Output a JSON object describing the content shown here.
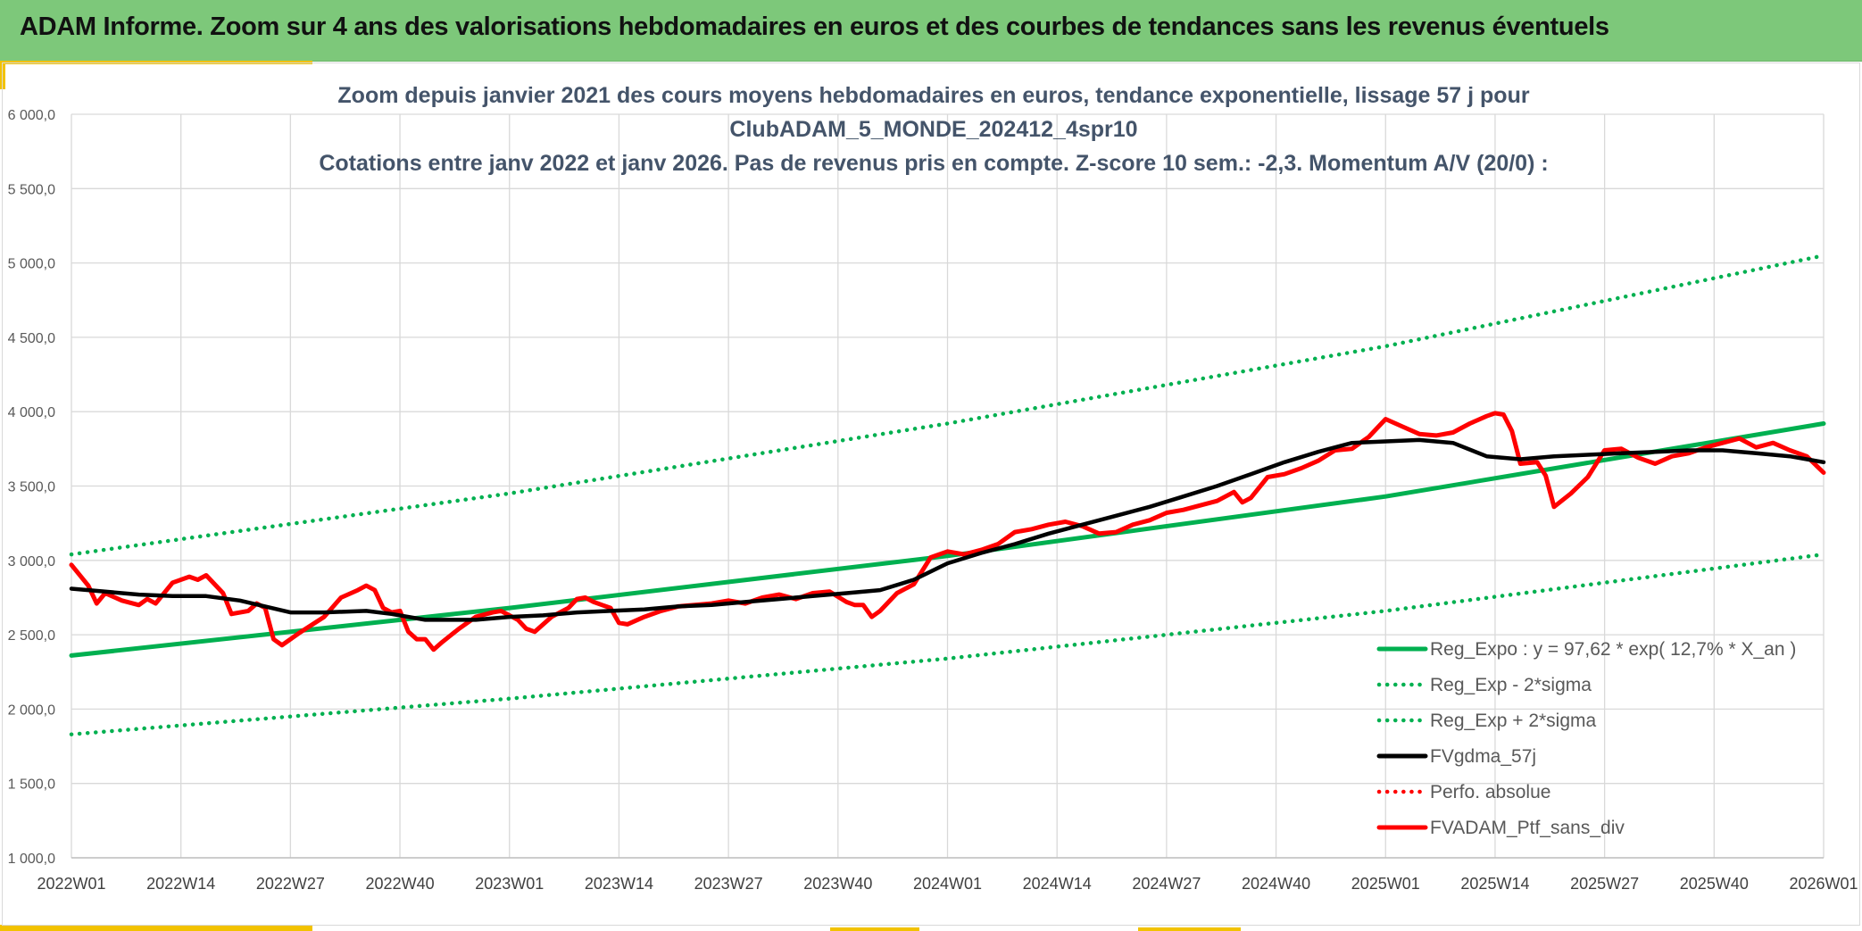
{
  "banner": {
    "title": "ADAM Informe. Zoom sur 4 ans des valorisations hebdomadaires en euros et des courbes de tendances sans les revenus éventuels"
  },
  "colors": {
    "banner_bg": "#7dc87a",
    "accent": "#f2c200",
    "reg_expo": "#00b050",
    "fvgdma": "#000000",
    "perf": "#ff0000",
    "ptf": "#ff0000"
  },
  "chart_data": {
    "type": "line",
    "title": [
      "Zoom depuis janvier 2021 des cours moyens hebdomadaires en euros, tendance exponentielle, lissage 57 j pour",
      "ClubADAM_5_MONDE_202412_4spr10",
      "Cotations entre janv 2022 et janv 2026. Pas de revenus pris en compte. Z-score 10 sem.: -2,3. Momentum A/V (20/0) :"
    ],
    "xlabel": "",
    "ylabel": "",
    "ylim": [
      1000,
      6000
    ],
    "xlim": [
      0,
      208
    ],
    "grid": true,
    "y_ticks": [
      {
        "value": 1000,
        "label": "1 000,0"
      },
      {
        "value": 1500,
        "label": "1 500,0"
      },
      {
        "value": 2000,
        "label": "2 000,0"
      },
      {
        "value": 2500,
        "label": "2 500,0"
      },
      {
        "value": 3000,
        "label": "3 000,0"
      },
      {
        "value": 3500,
        "label": "3 500,0"
      },
      {
        "value": 4000,
        "label": "4 000,0"
      },
      {
        "value": 4500,
        "label": "4 500,0"
      },
      {
        "value": 5000,
        "label": "5 000,0"
      },
      {
        "value": 5500,
        "label": "5 500,0"
      },
      {
        "value": 6000,
        "label": "6 000,0"
      }
    ],
    "x_ticks": [
      {
        "week": 0,
        "label": "2022W01"
      },
      {
        "week": 13,
        "label": "2022W14"
      },
      {
        "week": 26,
        "label": "2022W27"
      },
      {
        "week": 39,
        "label": "2022W40"
      },
      {
        "week": 52,
        "label": "2023W01"
      },
      {
        "week": 65,
        "label": "2023W14"
      },
      {
        "week": 78,
        "label": "2023W27"
      },
      {
        "week": 91,
        "label": "2023W40"
      },
      {
        "week": 104,
        "label": "2024W01"
      },
      {
        "week": 117,
        "label": "2024W14"
      },
      {
        "week": 130,
        "label": "2024W27"
      },
      {
        "week": 143,
        "label": "2024W40"
      },
      {
        "week": 156,
        "label": "2025W01"
      },
      {
        "week": 169,
        "label": "2025W14"
      },
      {
        "week": 182,
        "label": "2025W27"
      },
      {
        "week": 195,
        "label": "2025W40"
      },
      {
        "week": 208,
        "label": "2026W01"
      }
    ],
    "legend_position": "bottom-right",
    "series": [
      {
        "name": "Reg_Expo : y = 97,62 * exp( 12,7% *  X_an )",
        "style": "solid",
        "color": "#00b050",
        "points": [
          [
            0,
            2360
          ],
          [
            52,
            2680
          ],
          [
            104,
            3030
          ],
          [
            156,
            3430
          ],
          [
            208,
            3920
          ]
        ]
      },
      {
        "name": "Reg_Exp - 2*sigma",
        "style": "dotted",
        "color": "#00b050",
        "points": [
          [
            0,
            1830
          ],
          [
            52,
            2070
          ],
          [
            104,
            2340
          ],
          [
            156,
            2660
          ],
          [
            208,
            3040
          ]
        ]
      },
      {
        "name": "Reg_Exp + 2*sigma",
        "style": "dotted",
        "color": "#00b050",
        "points": [
          [
            0,
            3040
          ],
          [
            52,
            3450
          ],
          [
            104,
            3920
          ],
          [
            156,
            4440
          ],
          [
            208,
            5050
          ]
        ]
      },
      {
        "name": "FVgdma_57j",
        "style": "solid",
        "color": "#000000",
        "points": [
          [
            0,
            2810
          ],
          [
            4,
            2790
          ],
          [
            8,
            2770
          ],
          [
            12,
            2760
          ],
          [
            16,
            2760
          ],
          [
            20,
            2730
          ],
          [
            23,
            2690
          ],
          [
            26,
            2650
          ],
          [
            30,
            2650
          ],
          [
            35,
            2660
          ],
          [
            38,
            2640
          ],
          [
            42,
            2600
          ],
          [
            48,
            2600
          ],
          [
            52,
            2620
          ],
          [
            56,
            2630
          ],
          [
            60,
            2650
          ],
          [
            64,
            2660
          ],
          [
            68,
            2670
          ],
          [
            72,
            2690
          ],
          [
            76,
            2700
          ],
          [
            80,
            2720
          ],
          [
            84,
            2740
          ],
          [
            88,
            2760
          ],
          [
            92,
            2780
          ],
          [
            96,
            2800
          ],
          [
            100,
            2870
          ],
          [
            104,
            2980
          ],
          [
            108,
            3050
          ],
          [
            112,
            3110
          ],
          [
            116,
            3180
          ],
          [
            120,
            3240
          ],
          [
            124,
            3300
          ],
          [
            128,
            3360
          ],
          [
            132,
            3430
          ],
          [
            136,
            3500
          ],
          [
            140,
            3580
          ],
          [
            144,
            3660
          ],
          [
            148,
            3730
          ],
          [
            152,
            3790
          ],
          [
            156,
            3800
          ],
          [
            160,
            3810
          ],
          [
            164,
            3790
          ],
          [
            168,
            3700
          ],
          [
            172,
            3680
          ],
          [
            176,
            3700
          ],
          [
            180,
            3710
          ],
          [
            184,
            3720
          ],
          [
            188,
            3730
          ],
          [
            192,
            3740
          ],
          [
            196,
            3740
          ],
          [
            200,
            3720
          ],
          [
            204,
            3700
          ],
          [
            208,
            3660
          ]
        ]
      },
      {
        "name": "Perfo. absolue",
        "style": "dotted",
        "color": "#ff0000",
        "points": []
      },
      {
        "name": "FVADAM_Ptf_sans_div",
        "style": "solid",
        "color": "#ff0000",
        "points": [
          [
            0,
            2970
          ],
          [
            2,
            2830
          ],
          [
            3,
            2710
          ],
          [
            4,
            2780
          ],
          [
            6,
            2730
          ],
          [
            8,
            2700
          ],
          [
            9,
            2740
          ],
          [
            10,
            2710
          ],
          [
            12,
            2850
          ],
          [
            14,
            2890
          ],
          [
            15,
            2870
          ],
          [
            16,
            2900
          ],
          [
            18,
            2780
          ],
          [
            19,
            2640
          ],
          [
            21,
            2660
          ],
          [
            22,
            2710
          ],
          [
            23,
            2680
          ],
          [
            24,
            2470
          ],
          [
            25,
            2430
          ],
          [
            27,
            2510
          ],
          [
            30,
            2620
          ],
          [
            32,
            2750
          ],
          [
            34,
            2800
          ],
          [
            35,
            2830
          ],
          [
            36,
            2800
          ],
          [
            37,
            2680
          ],
          [
            38,
            2650
          ],
          [
            39,
            2660
          ],
          [
            40,
            2520
          ],
          [
            41,
            2470
          ],
          [
            42,
            2470
          ],
          [
            43,
            2400
          ],
          [
            44,
            2450
          ],
          [
            46,
            2540
          ],
          [
            48,
            2620
          ],
          [
            50,
            2650
          ],
          [
            51,
            2660
          ],
          [
            52,
            2630
          ],
          [
            53,
            2600
          ],
          [
            54,
            2540
          ],
          [
            55,
            2520
          ],
          [
            57,
            2620
          ],
          [
            59,
            2680
          ],
          [
            60,
            2740
          ],
          [
            61,
            2750
          ],
          [
            62,
            2720
          ],
          [
            63,
            2700
          ],
          [
            64,
            2680
          ],
          [
            65,
            2580
          ],
          [
            66,
            2570
          ],
          [
            68,
            2620
          ],
          [
            70,
            2660
          ],
          [
            72,
            2690
          ],
          [
            74,
            2700
          ],
          [
            76,
            2710
          ],
          [
            78,
            2730
          ],
          [
            80,
            2710
          ],
          [
            82,
            2750
          ],
          [
            84,
            2770
          ],
          [
            86,
            2740
          ],
          [
            88,
            2780
          ],
          [
            90,
            2790
          ],
          [
            92,
            2720
          ],
          [
            93,
            2700
          ],
          [
            94,
            2700
          ],
          [
            95,
            2620
          ],
          [
            96,
            2660
          ],
          [
            98,
            2780
          ],
          [
            100,
            2840
          ],
          [
            102,
            3020
          ],
          [
            104,
            3060
          ],
          [
            106,
            3040
          ],
          [
            108,
            3070
          ],
          [
            110,
            3110
          ],
          [
            112,
            3190
          ],
          [
            114,
            3210
          ],
          [
            116,
            3240
          ],
          [
            118,
            3260
          ],
          [
            120,
            3230
          ],
          [
            122,
            3180
          ],
          [
            124,
            3190
          ],
          [
            126,
            3240
          ],
          [
            128,
            3270
          ],
          [
            130,
            3320
          ],
          [
            132,
            3340
          ],
          [
            134,
            3370
          ],
          [
            136,
            3400
          ],
          [
            138,
            3460
          ],
          [
            139,
            3390
          ],
          [
            140,
            3420
          ],
          [
            142,
            3560
          ],
          [
            144,
            3580
          ],
          [
            146,
            3620
          ],
          [
            148,
            3670
          ],
          [
            150,
            3740
          ],
          [
            152,
            3750
          ],
          [
            154,
            3830
          ],
          [
            156,
            3950
          ],
          [
            158,
            3900
          ],
          [
            160,
            3850
          ],
          [
            162,
            3840
          ],
          [
            164,
            3860
          ],
          [
            166,
            3920
          ],
          [
            168,
            3970
          ],
          [
            169,
            3990
          ],
          [
            170,
            3980
          ],
          [
            171,
            3870
          ],
          [
            172,
            3650
          ],
          [
            174,
            3660
          ],
          [
            175,
            3570
          ],
          [
            176,
            3360
          ],
          [
            178,
            3450
          ],
          [
            180,
            3560
          ],
          [
            182,
            3740
          ],
          [
            184,
            3750
          ],
          [
            186,
            3690
          ],
          [
            188,
            3650
          ],
          [
            190,
            3700
          ],
          [
            192,
            3720
          ],
          [
            194,
            3760
          ],
          [
            196,
            3790
          ],
          [
            198,
            3820
          ],
          [
            200,
            3760
          ],
          [
            202,
            3790
          ],
          [
            204,
            3740
          ],
          [
            206,
            3700
          ],
          [
            208,
            3590
          ]
        ]
      }
    ]
  }
}
